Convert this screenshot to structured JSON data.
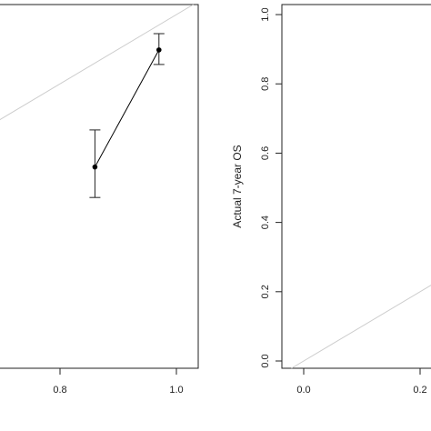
{
  "chart_data": [
    {
      "type": "calibration",
      "x": [
        0.86,
        0.97
      ],
      "values": [
        0.56,
        0.898
      ],
      "lower": [
        0.472,
        0.856
      ],
      "upper": [
        0.667,
        0.945
      ],
      "color": "#000000",
      "reference_line": true,
      "reference_color": "#cccccc",
      "xlim": [
        0.68,
        1.0375
      ],
      "ylim": [
        -0.021,
        1.029
      ],
      "xticks": [
        0.8,
        {
          "value": 1,
          "label": "1.0"
        }
      ]
    },
    {
      "type": "calibration",
      "ylabel": "Actual 7-year OS",
      "x": [],
      "values": [],
      "lower": [],
      "upper": [],
      "color": "#000000",
      "reference_line": true,
      "reference_color": "#cccccc",
      "xlim": [
        -0.0375,
        0.25
      ],
      "ylim": [
        -0.021,
        1.029
      ],
      "xticks": [
        {
          "value": 0,
          "label": "0.0"
        },
        0.2
      ],
      "yticks": [
        {
          "value": 0,
          "label": "0.0"
        },
        0.2,
        0.4,
        0.6,
        0.8,
        {
          "value": 1,
          "label": "1.0"
        }
      ]
    }
  ]
}
